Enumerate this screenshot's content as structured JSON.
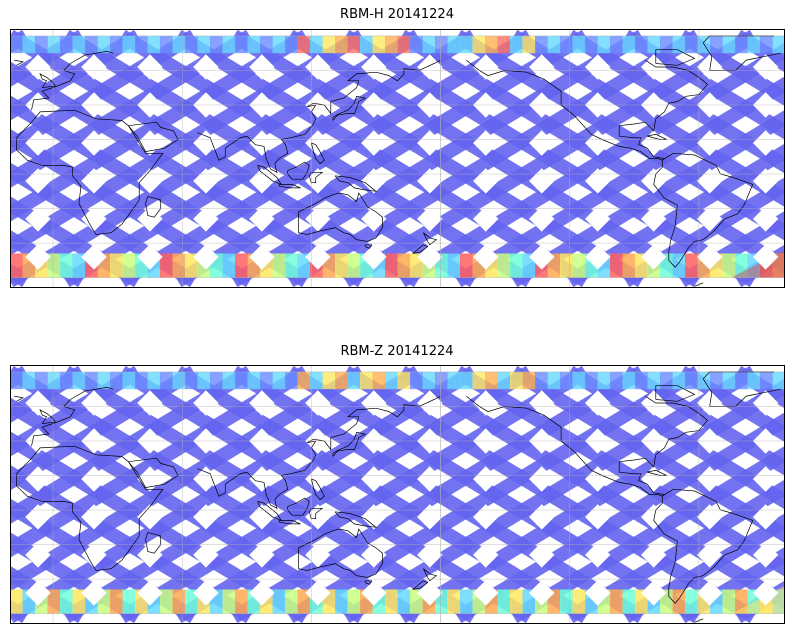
{
  "panels": [
    {
      "title": "RBM-H 20141224",
      "colors": {
        "track": "#6464f0",
        "south_band": [
          "#ff6060",
          "#ffa850",
          "#ffe860",
          "#c8ff80",
          "#70ffd8",
          "#66d8ff"
        ],
        "north_band": [
          "#6a8cff",
          "#66d8ff",
          "#ffe860",
          "#ffb050",
          "#ff7060"
        ],
        "atlantic_anomaly": "#cc5a5a"
      }
    },
    {
      "title": "RBM-Z 20141224",
      "colors": {
        "track": "#6464f0",
        "south_band": [
          "#66d8ff",
          "#70ffd8",
          "#c8ff80",
          "#ffe860",
          "#ffa850"
        ],
        "north_band": [
          "#6a8cff",
          "#66d8ff",
          "#ffe860",
          "#ffb050"
        ],
        "atlantic_anomaly": "#ffe860"
      }
    }
  ],
  "gridlines": {
    "lon_deg": [
      -180,
      -120,
      -60,
      0,
      60,
      120,
      180
    ],
    "lat_deg": [
      -60,
      -40,
      -20,
      0,
      20,
      40,
      60,
      80
    ]
  }
}
